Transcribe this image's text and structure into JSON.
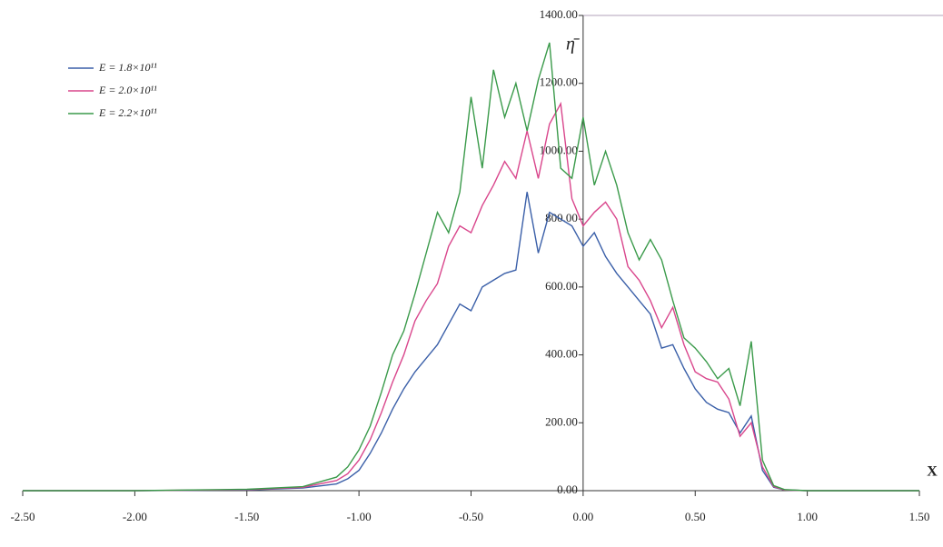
{
  "chart_data": {
    "type": "line",
    "y_label": "η̄",
    "x_label": "X",
    "x": [
      -2.5,
      -2.0,
      -1.5,
      -1.25,
      -1.1,
      -1.05,
      -1.0,
      -0.95,
      -0.9,
      -0.85,
      -0.8,
      -0.75,
      -0.7,
      -0.65,
      -0.6,
      -0.55,
      -0.5,
      -0.45,
      -0.4,
      -0.35,
      -0.3,
      -0.25,
      -0.2,
      -0.15,
      -0.1,
      -0.05,
      0.0,
      0.05,
      0.1,
      0.15,
      0.2,
      0.25,
      0.3,
      0.35,
      0.4,
      0.45,
      0.5,
      0.55,
      0.6,
      0.65,
      0.7,
      0.75,
      0.8,
      0.85,
      0.9,
      1.0,
      1.5
    ],
    "series": [
      {
        "name": "E = 1.8×10¹¹",
        "color": "#3a5fa8",
        "values": [
          0,
          0,
          2,
          8,
          20,
          35,
          60,
          110,
          170,
          240,
          300,
          350,
          390,
          430,
          490,
          550,
          530,
          600,
          620,
          640,
          650,
          880,
          700,
          820,
          800,
          780,
          720,
          760,
          690,
          640,
          600,
          560,
          520,
          420,
          430,
          360,
          300,
          260,
          240,
          230,
          170,
          220,
          60,
          10,
          2,
          0,
          0
        ]
      },
      {
        "name": "E = 2.0×10¹¹",
        "color": "#d9468c",
        "values": [
          0,
          0,
          3,
          10,
          30,
          50,
          90,
          150,
          230,
          320,
          400,
          500,
          560,
          610,
          720,
          780,
          760,
          840,
          900,
          970,
          920,
          1060,
          920,
          1080,
          1140,
          860,
          780,
          820,
          850,
          800,
          660,
          620,
          560,
          480,
          540,
          430,
          350,
          330,
          320,
          270,
          160,
          200,
          70,
          12,
          2,
          0,
          0
        ]
      },
      {
        "name": "E = 2.2×10¹¹",
        "color": "#3a9a4a",
        "values": [
          0,
          0,
          4,
          12,
          40,
          70,
          120,
          190,
          290,
          400,
          470,
          580,
          700,
          820,
          760,
          880,
          1160,
          950,
          1240,
          1100,
          1200,
          1060,
          1210,
          1320,
          950,
          920,
          1100,
          900,
          1000,
          900,
          760,
          680,
          740,
          680,
          560,
          450,
          420,
          380,
          330,
          360,
          250,
          440,
          90,
          15,
          3,
          0,
          0
        ]
      }
    ],
    "xlim": [
      -2.5,
      1.5
    ],
    "xticks": [
      {
        "value": -2.5,
        "label": "-2.50"
      },
      {
        "value": -2.0,
        "label": "-2.00"
      },
      {
        "value": -1.5,
        "label": "-1.50"
      },
      {
        "value": -1.0,
        "label": "-1.00"
      },
      {
        "value": -0.5,
        "label": "-0.50"
      },
      {
        "value": 0,
        "label": "0.00"
      },
      {
        "value": 0.5,
        "label": "0.50"
      },
      {
        "value": 1.0,
        "label": "1.00"
      },
      {
        "value": 1.5,
        "label": "1.50"
      }
    ],
    "ylim": [
      0,
      1400
    ],
    "yticks": [
      {
        "value": 0,
        "label": "0.00"
      },
      {
        "value": 200,
        "label": "200.00"
      },
      {
        "value": 400,
        "label": "400.00"
      },
      {
        "value": 600,
        "label": "600.00"
      },
      {
        "value": 800,
        "label": "800.00"
      },
      {
        "value": 1000,
        "label": "1000.00"
      },
      {
        "value": 1200,
        "label": "1200.00"
      },
      {
        "value": 1400,
        "label": "1400.00"
      }
    ],
    "legend": "top-left"
  }
}
